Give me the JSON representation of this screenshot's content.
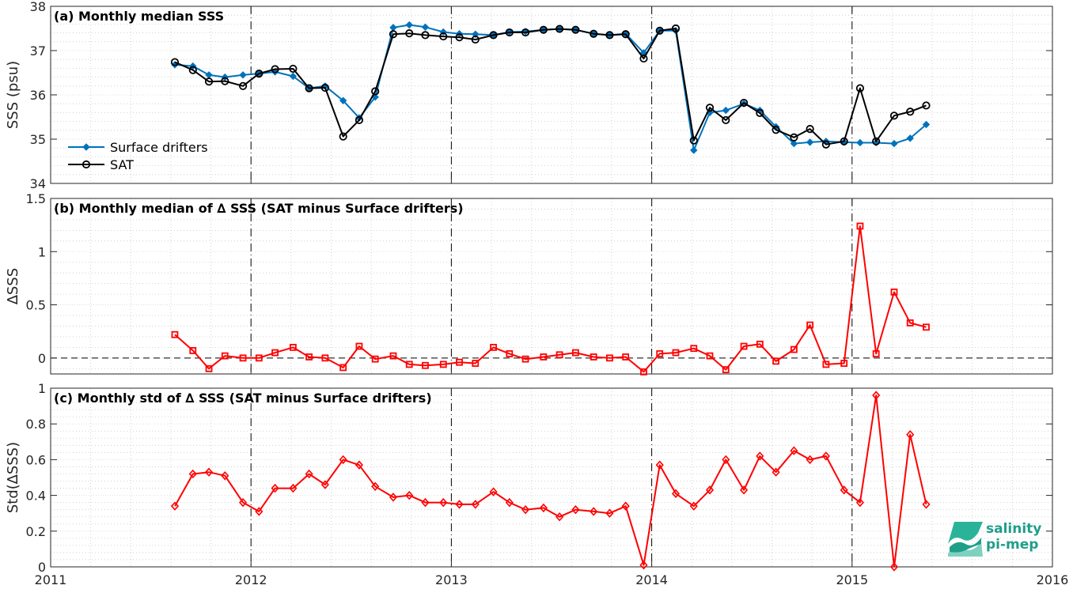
{
  "colors": {
    "drifters": "#0072BD",
    "sat": "#000000",
    "delta": "#FF0000",
    "grid": "#c8c8c8",
    "logo": "#1f9e8a"
  },
  "xaxis": {
    "tick_labels": [
      "2011",
      "2012",
      "2013",
      "2014",
      "2015",
      "2016"
    ]
  },
  "logo": {
    "line1": "salinity",
    "line2": "pi-mep"
  },
  "chart_data": [
    {
      "id": "a",
      "type": "line",
      "title": "(a) Monthly median SSS",
      "ylabel": "SSS (psu)",
      "xlim": [
        2011,
        2016
      ],
      "ylim": [
        34,
        38
      ],
      "yticks": [
        34,
        35,
        36,
        37,
        38
      ],
      "ytick_labels": [
        "34",
        "35",
        "36",
        "37",
        "38"
      ],
      "grid": true,
      "legend": "lower-left",
      "x": [
        2011.62,
        2011.71,
        2011.79,
        2011.87,
        2011.96,
        2012.04,
        2012.12,
        2012.21,
        2012.29,
        2012.37,
        2012.46,
        2012.54,
        2012.62,
        2012.71,
        2012.79,
        2012.87,
        2012.96,
        2013.04,
        2013.12,
        2013.21,
        2013.29,
        2013.37,
        2013.46,
        2013.54,
        2013.62,
        2013.71,
        2013.79,
        2013.87,
        2013.96,
        2014.04,
        2014.12,
        2014.21,
        2014.29,
        2014.37,
        2014.46,
        2014.54,
        2014.62,
        2014.71,
        2014.79,
        2014.87,
        2014.96,
        2015.04,
        2015.12,
        2015.21,
        2015.29,
        2015.37
      ],
      "series": [
        {
          "name": "Surface drifters",
          "marker": "diamond-filled",
          "values": [
            36.68,
            36.65,
            36.45,
            36.4,
            36.45,
            36.48,
            36.52,
            36.42,
            36.15,
            36.2,
            35.87,
            35.48,
            35.95,
            37.52,
            37.58,
            37.53,
            37.42,
            37.38,
            37.37,
            37.35,
            37.42,
            37.43,
            37.47,
            37.49,
            37.47,
            37.38,
            37.35,
            37.38,
            36.95,
            37.45,
            37.45,
            34.75,
            35.6,
            35.65,
            35.8,
            35.65,
            35.28,
            34.9,
            34.93,
            34.95,
            34.93,
            34.92,
            34.92,
            34.9,
            35.02,
            35.33
          ]
        },
        {
          "name": "SAT",
          "marker": "circle-open",
          "values": [
            36.74,
            36.56,
            36.3,
            36.31,
            36.2,
            36.48,
            36.58,
            36.59,
            36.15,
            36.16,
            35.06,
            35.43,
            36.08,
            37.37,
            37.39,
            37.35,
            37.32,
            37.3,
            37.25,
            37.35,
            37.41,
            37.41,
            37.47,
            37.49,
            37.47,
            37.38,
            37.35,
            37.37,
            36.82,
            37.45,
            37.5,
            34.97,
            35.71,
            35.43,
            35.82,
            35.59,
            35.21,
            35.04,
            35.23,
            34.88,
            34.95,
            36.15,
            34.95,
            35.53,
            35.62,
            35.76
          ]
        }
      ]
    },
    {
      "id": "b",
      "type": "line",
      "title": "(b) Monthly median of ∆ SSS (SAT minus Surface drifters)",
      "ylabel": "∆SSS",
      "xlim": [
        2011,
        2016
      ],
      "ylim": [
        -0.15,
        1.5
      ],
      "yticks": [
        0,
        0.5,
        1,
        1.5
      ],
      "ytick_labels": [
        "0",
        "0.5",
        "1",
        "1.5"
      ],
      "grid": true,
      "zero_line": true,
      "x": [
        2011.62,
        2011.71,
        2011.79,
        2011.87,
        2011.96,
        2012.04,
        2012.12,
        2012.21,
        2012.29,
        2012.37,
        2012.46,
        2012.54,
        2012.62,
        2012.71,
        2012.79,
        2012.87,
        2012.96,
        2013.04,
        2013.12,
        2013.21,
        2013.29,
        2013.37,
        2013.46,
        2013.54,
        2013.62,
        2013.71,
        2013.79,
        2013.87,
        2013.96,
        2014.04,
        2014.12,
        2014.21,
        2014.29,
        2014.37,
        2014.46,
        2014.54,
        2014.62,
        2014.71,
        2014.79,
        2014.87,
        2014.96,
        2015.04,
        2015.12,
        2015.21,
        2015.29,
        2015.37
      ],
      "series": [
        {
          "name": "",
          "marker": "square-open",
          "values": [
            0.22,
            0.07,
            -0.1,
            0.02,
            0.0,
            0.0,
            0.05,
            0.1,
            0.01,
            0.0,
            -0.09,
            0.11,
            -0.01,
            0.02,
            -0.06,
            -0.07,
            -0.06,
            -0.04,
            -0.05,
            0.1,
            0.04,
            -0.01,
            0.01,
            0.03,
            0.05,
            0.01,
            0.0,
            0.01,
            -0.13,
            0.04,
            0.05,
            0.09,
            0.02,
            -0.11,
            0.11,
            0.13,
            -0.03,
            0.08,
            0.31,
            -0.06,
            -0.05,
            1.24,
            0.04,
            0.62,
            0.33,
            0.29
          ]
        }
      ]
    },
    {
      "id": "c",
      "type": "line",
      "title": "(c) Monthly std of ∆ SSS (SAT minus Surface drifters)",
      "ylabel": "Std(∆SSS)",
      "xlim": [
        2011,
        2016
      ],
      "ylim": [
        0,
        1
      ],
      "yticks": [
        0,
        0.2,
        0.4,
        0.6,
        0.8,
        1
      ],
      "ytick_labels": [
        "0",
        "0.2",
        "0.4",
        "0.6",
        "0.8",
        "1"
      ],
      "grid": true,
      "x": [
        2011.62,
        2011.71,
        2011.79,
        2011.87,
        2011.96,
        2012.04,
        2012.12,
        2012.21,
        2012.29,
        2012.37,
        2012.46,
        2012.54,
        2012.62,
        2012.71,
        2012.79,
        2012.87,
        2012.96,
        2013.04,
        2013.12,
        2013.21,
        2013.29,
        2013.37,
        2013.46,
        2013.54,
        2013.62,
        2013.71,
        2013.79,
        2013.87,
        2013.96,
        2014.04,
        2014.12,
        2014.21,
        2014.29,
        2014.37,
        2014.46,
        2014.54,
        2014.62,
        2014.71,
        2014.79,
        2014.87,
        2014.96,
        2015.04,
        2015.12,
        2015.21,
        2015.29,
        2015.37
      ],
      "series": [
        {
          "name": "",
          "marker": "diamond-open",
          "values": [
            0.34,
            0.52,
            0.53,
            0.51,
            0.36,
            0.31,
            0.44,
            0.44,
            0.52,
            0.46,
            0.6,
            0.57,
            0.45,
            0.39,
            0.4,
            0.36,
            0.36,
            0.35,
            0.35,
            0.42,
            0.36,
            0.32,
            0.33,
            0.28,
            0.32,
            0.31,
            0.3,
            0.34,
            0.01,
            0.57,
            0.41,
            0.34,
            0.43,
            0.6,
            0.43,
            0.62,
            0.53,
            0.65,
            0.6,
            0.62,
            0.43,
            0.36,
            0.96,
            0.0,
            0.74,
            0.35
          ]
        }
      ]
    }
  ]
}
